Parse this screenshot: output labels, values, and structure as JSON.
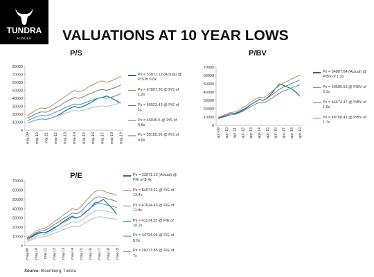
{
  "header": {
    "logo": "TUNDRA",
    "logo_sub": "FONDER",
    "title": "VALUATIONS AT 10 YEAR LOWS"
  },
  "source_label": "Source:",
  "source": "Bloomberg, Tundra",
  "chart_data": [
    {
      "type": "line",
      "title": "P/S",
      "categories": [
        "maj-09",
        null,
        "maj-10",
        null,
        "maj-11",
        null,
        "maj-12",
        null,
        "maj-13",
        null,
        "maj-14",
        null,
        "maj-15",
        null,
        "maj-16",
        null,
        "maj-17",
        null,
        "maj-18",
        null,
        "maj-19"
      ],
      "ylim": [
        0,
        80000
      ],
      "yticks": [
        0,
        10000,
        20000,
        30000,
        40000,
        50000,
        60000,
        70000,
        80000
      ],
      "series": [
        {
          "name": "Px = 33971.12 (Actual) @ P/S of 0.6x",
          "color": "#1f6b8a",
          "values": [
            9000,
            11000,
            13000,
            14000,
            13500,
            15000,
            17000,
            20000,
            24000,
            27000,
            30000,
            28000,
            30000,
            33000,
            36000,
            40000,
            41000,
            43000,
            40000,
            37000,
            33971.12
          ]
        },
        {
          "name": "Px = 67807.36 @ P/S of 1.2x",
          "color": "#a8864a",
          "values": [
            18000,
            22000,
            26000,
            28000,
            27000,
            30000,
            34000,
            38000,
            42000,
            46000,
            50000,
            48000,
            50000,
            54000,
            57000,
            60000,
            62000,
            60000,
            62000,
            65000,
            67807.36
          ]
        },
        {
          "name": "Px = 56923.43 @ P/S of 1x",
          "color": "#6b6b7b",
          "values": [
            15000,
            18000,
            21000,
            23000,
            22500,
            25000,
            28000,
            31000,
            35000,
            38000,
            41000,
            40000,
            42000,
            45000,
            47000,
            50000,
            51000,
            50000,
            52000,
            54000,
            56923.43
          ]
        },
        {
          "name": "Px = 46039.5 @ P/S of 0.8x",
          "color": "#2e86c1",
          "values": [
            12000,
            14500,
            17000,
            18500,
            18000,
            20000,
            22500,
            25000,
            28000,
            30500,
            33000,
            32000,
            33500,
            36000,
            38000,
            40000,
            41000,
            40000,
            41500,
            43500,
            46039.5
          ]
        },
        {
          "name": "Px = 35155.56 @ P/S of 0.6x",
          "color": "#8fbfdc",
          "values": [
            9000,
            11000,
            13000,
            14000,
            13500,
            15000,
            17000,
            19000,
            21000,
            23000,
            25000,
            24000,
            25000,
            27000,
            28500,
            30000,
            30500,
            30000,
            31000,
            32500,
            35155.56
          ]
        }
      ]
    },
    {
      "type": "line",
      "title": "P/BV",
      "categories": [
        "apr-09",
        null,
        "apr-10",
        null,
        "apr-11",
        null,
        "apr-12",
        null,
        "apr-13",
        null,
        "apr-14",
        null,
        "apr-15",
        null,
        "apr-16",
        null,
        "apr-17",
        null,
        "apr-18",
        null,
        "apr-19"
      ],
      "ylim": [
        0,
        70000
      ],
      "yticks": [
        0,
        10000,
        20000,
        30000,
        40000,
        50000,
        60000,
        70000
      ],
      "series": [
        {
          "name": "Px = 34887.64 (Actual) @ P/BV of 1.2x",
          "color": "#1f6b8a",
          "values": [
            9000,
            10000,
            12000,
            14000,
            14000,
            15500,
            18000,
            21000,
            25000,
            28000,
            31000,
            30000,
            33000,
            38000,
            44000,
            50000,
            48000,
            46000,
            44000,
            40000,
            34887.64
          ]
        },
        {
          "name": "Px = 60580.53 @ P/BV of 2.1x",
          "color": "#a8864a",
          "values": [
            10000,
            11500,
            13500,
            15500,
            16000,
            18000,
            21000,
            24000,
            28000,
            31000,
            34000,
            33000,
            36000,
            40000,
            44000,
            48000,
            51000,
            53000,
            56000,
            58000,
            60580.53
          ]
        },
        {
          "name": "Px = 54674.47 @ P/BV of 1.9x",
          "color": "#6b6b7b",
          "values": [
            9000,
            10500,
            12200,
            14000,
            14500,
            16300,
            19000,
            21700,
            25300,
            28000,
            30800,
            30000,
            32600,
            36200,
            39800,
            43400,
            46100,
            48000,
            50600,
            52500,
            54674.47
          ]
        },
        {
          "name": "Px = 48768.41 @ P/BV of 1.7x",
          "color": "#2e86c1",
          "values": [
            8100,
            9400,
            10900,
            12500,
            13000,
            14600,
            17000,
            19400,
            22700,
            25100,
            27500,
            26800,
            29100,
            32400,
            35600,
            38800,
            41300,
            42900,
            45300,
            47000,
            48768.41
          ]
        }
      ]
    },
    {
      "type": "line",
      "title": "P/E",
      "categories": [
        "maj-09",
        null,
        "maj-10",
        null,
        "maj-11",
        null,
        "maj-12",
        null,
        "maj-13",
        null,
        "maj-14",
        null,
        "maj-15",
        null,
        "maj-16",
        null,
        "maj-17",
        null,
        "maj-18",
        null,
        "maj-19"
      ],
      "ylim": [
        0,
        70000
      ],
      "yticks": [
        0,
        10000,
        20000,
        30000,
        40000,
        50000,
        60000,
        70000
      ],
      "series": [
        {
          "name": "Px = 33971.12 (Actual) @ P/E of 8.4x",
          "color": "#1f6b8a",
          "values": [
            8000,
            10000,
            13000,
            14500,
            14000,
            16000,
            19000,
            22000,
            26000,
            29000,
            32000,
            30000,
            32000,
            36000,
            40000,
            46000,
            47000,
            50000,
            45000,
            40000,
            33971.12
          ]
        },
        {
          "name": "Px = 54074.62 @ P/E of 13.4x",
          "color": "#a8864a",
          "values": [
            9000,
            12000,
            16000,
            18000,
            19000,
            22000,
            26000,
            29000,
            33000,
            36000,
            40000,
            39000,
            42000,
            48000,
            53000,
            58000,
            60000,
            59000,
            57000,
            56000,
            54074.62
          ]
        },
        {
          "name": "Px = 47624.43 @ P/E of 11.8x",
          "color": "#6b6b7b",
          "values": [
            7900,
            10600,
            14100,
            15900,
            16700,
            19400,
            22900,
            25500,
            29100,
            31700,
            35200,
            34400,
            37000,
            42300,
            46700,
            51100,
            52900,
            52000,
            50200,
            49300,
            47624.43
          ]
        },
        {
          "name": "Px = 41174.23 @ P/E of 10.2x",
          "color": "#2e86c1",
          "values": [
            6800,
            9100,
            12200,
            13700,
            14500,
            16700,
            19800,
            22100,
            25100,
            27400,
            30400,
            29700,
            32000,
            36500,
            40300,
            44100,
            45700,
            44900,
            43400,
            42600,
            41174.23
          ]
        },
        {
          "name": "Px = 34724.04 @ P/E of 8.6x",
          "color": "#8fbfdc",
          "values": [
            5800,
            7700,
            10300,
            11600,
            12200,
            14100,
            16700,
            18600,
            21200,
            23100,
            25700,
            25000,
            27000,
            30800,
            34000,
            37200,
            38500,
            37900,
            36600,
            36000,
            34724.04
          ]
        },
        {
          "name": "Px = 28273.85 @ P/E of 7x",
          "color": "#b0b0b0",
          "values": [
            4700,
            6300,
            8400,
            9400,
            9900,
            11500,
            13600,
            15200,
            17300,
            18800,
            20900,
            20400,
            21900,
            25100,
            27700,
            30300,
            31400,
            30900,
            29800,
            29300,
            28273.85
          ]
        }
      ]
    }
  ]
}
